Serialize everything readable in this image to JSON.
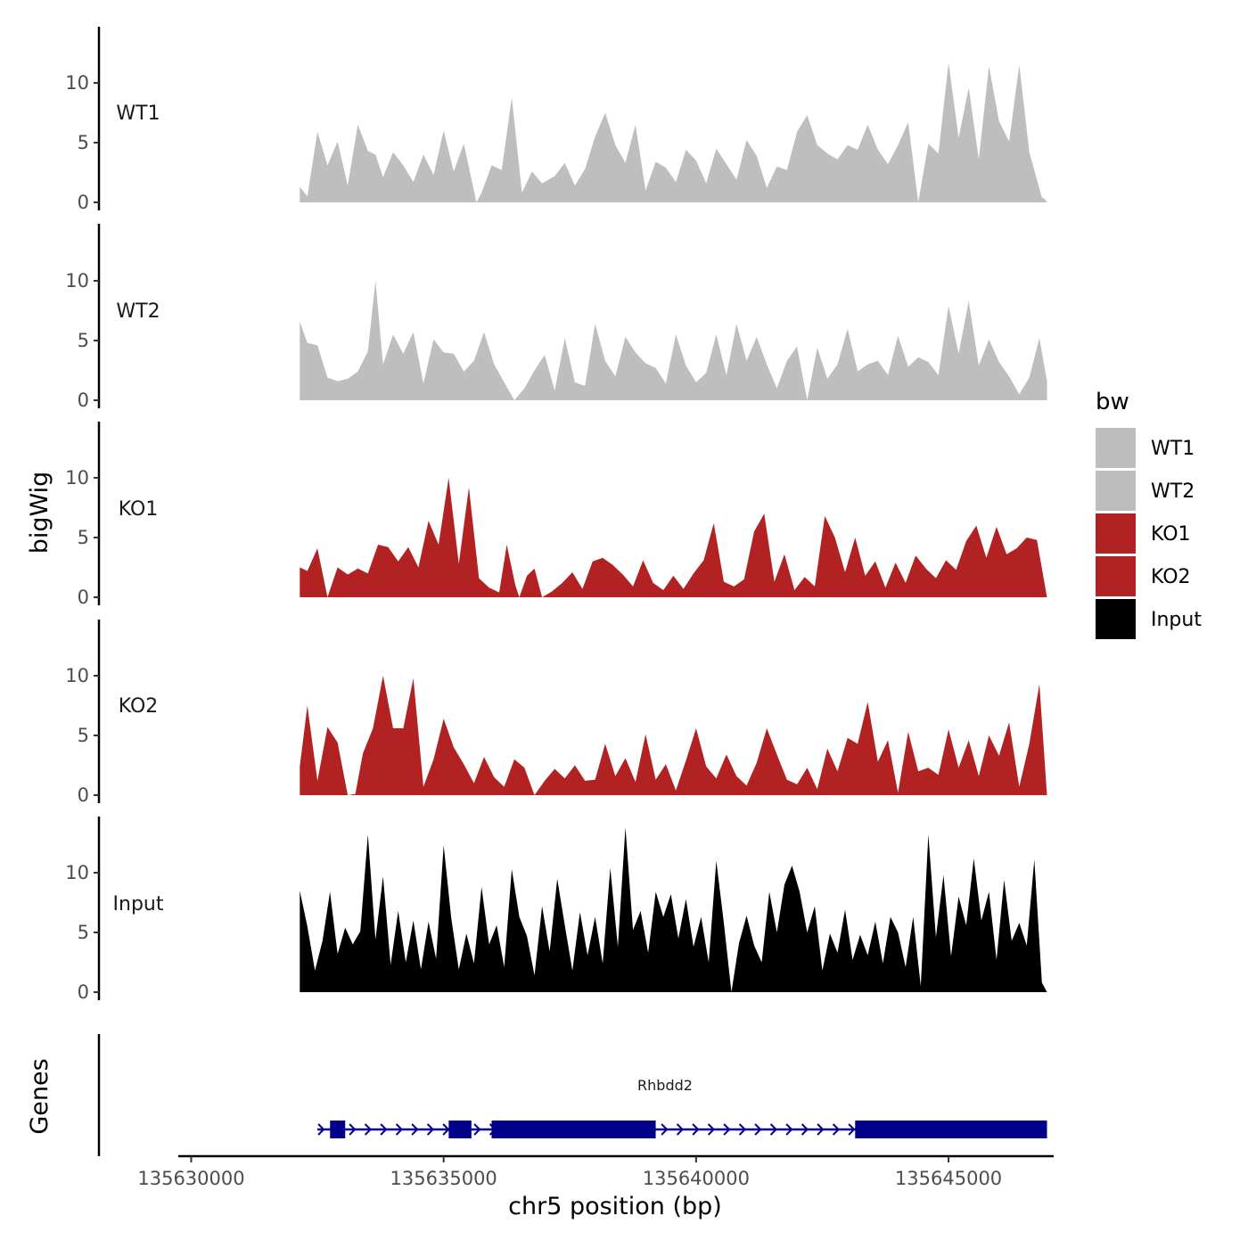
{
  "chart_data": {
    "type": "area",
    "y_axis_title": "bigWig",
    "genes_axis_title": "Genes",
    "x_axis_title": "chr5 position (bp)",
    "xlim": [
      135629850,
      135647100
    ],
    "x_ticks": [
      135630000,
      135635000,
      135640000,
      135645000
    ],
    "x_tick_labels": [
      "135630000",
      "135635000",
      "135640000",
      "135645000"
    ],
    "ylim": [
      0,
      14.5
    ],
    "y_ticks": [
      0,
      5,
      10
    ],
    "y_tick_labels": [
      "0",
      "5",
      "10"
    ],
    "legend": {
      "title": "bw",
      "position": "right",
      "entries": [
        {
          "label": "WT1",
          "color": "#bebebe"
        },
        {
          "label": "WT2",
          "color": "#bebebe"
        },
        {
          "label": "KO1",
          "color": "#b22222"
        },
        {
          "label": "KO2",
          "color": "#b22222"
        },
        {
          "label": "Input",
          "color": "#000000"
        }
      ]
    },
    "tracks": [
      {
        "name": "WT1",
        "color": "#bebebe",
        "x": [
          135632150,
          135632300,
          135632500,
          135632700,
          135632900,
          135633100,
          135633300,
          135633500,
          135633650,
          135633800,
          135634000,
          135634200,
          135634400,
          135634600,
          135634800,
          135635000,
          135635200,
          135635400,
          135635650,
          135635750,
          135635950,
          135636150,
          135636350,
          135636550,
          135636750,
          135636950,
          135637200,
          135637400,
          135637600,
          135637800,
          135638000,
          135638200,
          135638400,
          135638600,
          135638800,
          135639000,
          135639200,
          135639400,
          135639600,
          135639800,
          135640000,
          135640200,
          135640400,
          135640600,
          135640800,
          135641000,
          135641200,
          135641400,
          135641600,
          135641800,
          135642000,
          135642200,
          135642400,
          135642600,
          135642800,
          135643000,
          135643200,
          135643400,
          135643600,
          135643800,
          135644000,
          135644200,
          135644400,
          135644600,
          135644800,
          135645000,
          135645200,
          135645400,
          135645600,
          135645800,
          135646000,
          135646200,
          135646400,
          135646600,
          135646850,
          135646900,
          135646950
        ],
        "values": [
          1.3,
          0.5,
          5.9,
          3.1,
          5.1,
          1.4,
          6.5,
          4.3,
          4.0,
          2.1,
          4.2,
          3.1,
          1.7,
          4.0,
          2.3,
          6.0,
          2.6,
          4.9,
          0.0,
          0.8,
          3.1,
          2.7,
          8.8,
          0.8,
          2.6,
          1.6,
          2.2,
          3.3,
          1.4,
          2.8,
          5.5,
          7.5,
          4.8,
          3.3,
          6.5,
          1.0,
          3.4,
          2.9,
          1.7,
          4.4,
          3.5,
          1.6,
          4.5,
          3.2,
          1.9,
          5.2,
          3.9,
          1.2,
          3.0,
          2.7,
          5.9,
          7.3,
          4.8,
          4.1,
          3.6,
          4.8,
          4.4,
          6.5,
          4.4,
          3.2,
          4.8,
          6.7,
          0.0,
          4.9,
          4.1,
          11.7,
          5.4,
          9.6,
          3.6,
          11.4,
          6.8,
          5.1,
          11.5,
          4.2,
          0.4,
          0.3,
          0.0
        ]
      },
      {
        "name": "WT2",
        "color": "#bebebe",
        "x": [
          135632150,
          135632300,
          135632500,
          135632700,
          135632900,
          135633100,
          135633300,
          135633500,
          135633650,
          135633800,
          135634000,
          135634200,
          135634400,
          135634600,
          135634800,
          135635000,
          135635200,
          135635400,
          135635600,
          135635800,
          135636000,
          135636200,
          135636400,
          135636600,
          135636800,
          135637000,
          135637200,
          135637400,
          135637600,
          135637800,
          135638000,
          135638200,
          135638400,
          135638600,
          135638800,
          135639000,
          135639200,
          135639400,
          135639600,
          135639800,
          135640000,
          135640200,
          135640400,
          135640600,
          135640800,
          135641000,
          135641200,
          135641400,
          135641600,
          135641800,
          135642000,
          135642200,
          135642400,
          135642600,
          135642800,
          135643000,
          135643200,
          135643400,
          135643600,
          135643800,
          135644000,
          135644200,
          135644400,
          135644600,
          135644800,
          135645000,
          135645200,
          135645400,
          135645600,
          135645800,
          135646000,
          135646200,
          135646400,
          135646600,
          135646800,
          135646950
        ],
        "values": [
          6.6,
          4.8,
          4.6,
          1.9,
          1.6,
          1.8,
          2.4,
          4.1,
          10.0,
          3.0,
          5.5,
          3.9,
          5.7,
          1.4,
          5.1,
          4.0,
          3.9,
          2.4,
          3.3,
          5.7,
          3.0,
          1.5,
          0.0,
          1.0,
          2.5,
          3.8,
          0.8,
          5.2,
          1.5,
          1.2,
          6.4,
          3.3,
          2.0,
          5.3,
          4.0,
          3.1,
          2.7,
          1.4,
          5.5,
          2.9,
          1.5,
          2.3,
          5.5,
          2.1,
          6.4,
          3.3,
          5.3,
          3.0,
          1.0,
          3.3,
          4.5,
          0.0,
          4.4,
          1.8,
          3.0,
          6.0,
          2.4,
          3.0,
          3.3,
          2.1,
          5.4,
          2.8,
          3.6,
          3.2,
          2.1,
          7.9,
          3.9,
          8.3,
          2.9,
          5.1,
          3.2,
          2.0,
          0.5,
          1.9,
          5.2,
          1.6
        ]
      },
      {
        "name": "KO1",
        "color": "#b22222",
        "x": [
          135632150,
          135632300,
          135632500,
          135632700,
          135632900,
          135633100,
          135633300,
          135633500,
          135633700,
          135633900,
          135634100,
          135634300,
          135634500,
          135634700,
          135634900,
          135635100,
          135635300,
          135635500,
          135635700,
          135635900,
          135636100,
          135636250,
          135636420,
          135636500,
          135636650,
          135636800,
          135636950,
          135637150,
          135637350,
          135637550,
          135637750,
          135637950,
          135638150,
          135638350,
          135638550,
          135638750,
          135638950,
          135639150,
          135639350,
          135639550,
          135639750,
          135639950,
          135640150,
          135640350,
          135640550,
          135640750,
          135640950,
          135641150,
          135641350,
          135641550,
          135641750,
          135641950,
          135642150,
          135642350,
          135642550,
          135642750,
          135642950,
          135643150,
          135643350,
          135643550,
          135643750,
          135643950,
          135644150,
          135644350,
          135644550,
          135644750,
          135644950,
          135645150,
          135645350,
          135645550,
          135645750,
          135645950,
          135646150,
          135646350,
          135646550,
          135646750,
          135646950
        ],
        "values": [
          2.5,
          2.2,
          4.1,
          0.0,
          2.5,
          1.9,
          2.4,
          2.0,
          4.4,
          4.2,
          3.0,
          4.2,
          2.5,
          6.4,
          4.4,
          10.0,
          2.8,
          9.2,
          1.6,
          0.8,
          0.4,
          4.4,
          1.0,
          0.0,
          1.8,
          2.4,
          0.0,
          0.5,
          1.2,
          2.1,
          0.7,
          3.0,
          3.3,
          2.7,
          1.9,
          0.9,
          3.1,
          1.2,
          0.6,
          1.8,
          0.7,
          2.0,
          3.1,
          6.2,
          1.3,
          0.9,
          1.5,
          5.5,
          7.0,
          1.3,
          3.6,
          0.6,
          1.7,
          0.9,
          6.8,
          5.0,
          2.1,
          5.0,
          1.8,
          3.0,
          0.8,
          2.9,
          1.2,
          3.5,
          2.4,
          1.6,
          3.1,
          2.3,
          4.7,
          6.0,
          3.3,
          5.9,
          3.6,
          4.1,
          5.0,
          4.8,
          0.0
        ]
      },
      {
        "name": "KO2",
        "color": "#b22222",
        "x": [
          135632150,
          135632300,
          135632500,
          135632700,
          135632900,
          135633100,
          135633250,
          135633400,
          135633600,
          135633800,
          135634000,
          135634200,
          135634400,
          135634600,
          135634800,
          135635000,
          135635200,
          135635400,
          135635600,
          135635800,
          135636000,
          135636200,
          135636400,
          135636600,
          135636800,
          135637000,
          135637200,
          135637400,
          135637600,
          135637800,
          135638000,
          135638200,
          135638400,
          135638600,
          135638800,
          135639000,
          135639200,
          135639400,
          135639600,
          135639800,
          135640000,
          135640200,
          135640400,
          135640600,
          135640800,
          135641000,
          135641200,
          135641400,
          135641600,
          135641800,
          135642000,
          135642200,
          135642400,
          135642600,
          135642800,
          135643000,
          135643200,
          135643400,
          135643600,
          135643800,
          135644000,
          135644200,
          135644400,
          135644600,
          135644800,
          135645000,
          135645200,
          135645400,
          135645600,
          135645800,
          135646000,
          135646200,
          135646400,
          135646600,
          135646800,
          135646950
        ],
        "values": [
          2.4,
          7.5,
          1.2,
          5.7,
          4.4,
          0.0,
          0.1,
          3.5,
          5.6,
          10.0,
          5.6,
          5.6,
          9.8,
          0.7,
          3.0,
          6.4,
          4.0,
          2.6,
          1.0,
          3.2,
          1.5,
          0.7,
          3.0,
          2.3,
          0.0,
          1.2,
          2.2,
          1.4,
          2.5,
          1.2,
          1.3,
          4.3,
          1.6,
          3.1,
          1.1,
          5.1,
          1.3,
          2.6,
          0.4,
          2.9,
          5.6,
          2.4,
          1.4,
          3.4,
          1.6,
          0.8,
          2.7,
          5.6,
          3.4,
          1.3,
          0.9,
          2.3,
          0.5,
          3.9,
          2.0,
          4.8,
          4.3,
          7.8,
          2.8,
          4.6,
          0.2,
          5.3,
          2.0,
          2.3,
          1.7,
          5.5,
          2.3,
          4.6,
          1.6,
          5.0,
          3.3,
          6.1,
          0.7,
          4.3,
          9.3,
          0.0
        ]
      },
      {
        "name": "Input",
        "color": "#000000",
        "x": [
          135632150,
          135632300,
          135632450,
          135632600,
          135632750,
          135632900,
          135633050,
          135633200,
          135633350,
          135633500,
          135633650,
          135633800,
          135633950,
          135634100,
          135634250,
          135634400,
          135634550,
          135634700,
          135634850,
          135635000,
          135635150,
          135635300,
          135635450,
          135635600,
          135635750,
          135635900,
          135636050,
          135636200,
          135636350,
          135636500,
          135636650,
          135636800,
          135636950,
          135637100,
          135637250,
          135637400,
          135637550,
          135637700,
          135637850,
          135638000,
          135638150,
          135638300,
          135638450,
          135638600,
          135638750,
          135638900,
          135639050,
          135639200,
          135639350,
          135639500,
          135639650,
          135639800,
          135639950,
          135640100,
          135640250,
          135640400,
          135640550,
          135640700,
          135640850,
          135641000,
          135641150,
          135641300,
          135641450,
          135641600,
          135641750,
          135641900,
          135642050,
          135642200,
          135642350,
          135642500,
          135642650,
          135642800,
          135642950,
          135643100,
          135643250,
          135643400,
          135643550,
          135643700,
          135643850,
          135644000,
          135644150,
          135644300,
          135644450,
          135644600,
          135644750,
          135644900,
          135645050,
          135645200,
          135645350,
          135645500,
          135645650,
          135645800,
          135645950,
          135646100,
          135646250,
          135646400,
          135646550,
          135646700,
          135646850,
          135646950
        ],
        "values": [
          8.5,
          5.5,
          1.8,
          4.3,
          8.4,
          3.2,
          5.4,
          4.0,
          5.1,
          13.2,
          4.4,
          9.7,
          2.3,
          6.8,
          2.5,
          6.0,
          1.9,
          5.9,
          2.8,
          12.3,
          6.2,
          1.9,
          4.9,
          2.4,
          8.8,
          4.0,
          5.6,
          2.1,
          10.3,
          6.3,
          4.7,
          1.4,
          7.2,
          3.4,
          9.5,
          5.6,
          1.8,
          6.7,
          3.1,
          6.3,
          2.4,
          10.4,
          3.8,
          13.8,
          5.2,
          6.8,
          3.3,
          8.4,
          6.3,
          8.2,
          4.5,
          7.8,
          3.8,
          6.3,
          2.5,
          11.0,
          5.8,
          0.0,
          4.1,
          6.4,
          3.9,
          2.5,
          8.4,
          5.0,
          9.0,
          10.6,
          8.4,
          5.0,
          7.2,
          1.8,
          4.9,
          3.3,
          6.9,
          2.7,
          4.8,
          3.1,
          5.9,
          2.4,
          6.3,
          5.0,
          2.1,
          6.3,
          0.5,
          13.2,
          4.6,
          9.8,
          3.0,
          8.0,
          5.6,
          11.2,
          6.0,
          8.4,
          2.7,
          9.4,
          4.3,
          5.8,
          3.9,
          11.1,
          0.8,
          0.0
        ]
      }
    ],
    "genes": [
      {
        "name": "Rhbdd2",
        "color": "#00008b",
        "start": 135632500,
        "end": 135646950,
        "strand": "+",
        "exons": [
          [
            135632750,
            135633050
          ],
          [
            135635100,
            135635550
          ],
          [
            135635950,
            135639200
          ],
          [
            135643150,
            135646950
          ]
        ]
      }
    ]
  }
}
